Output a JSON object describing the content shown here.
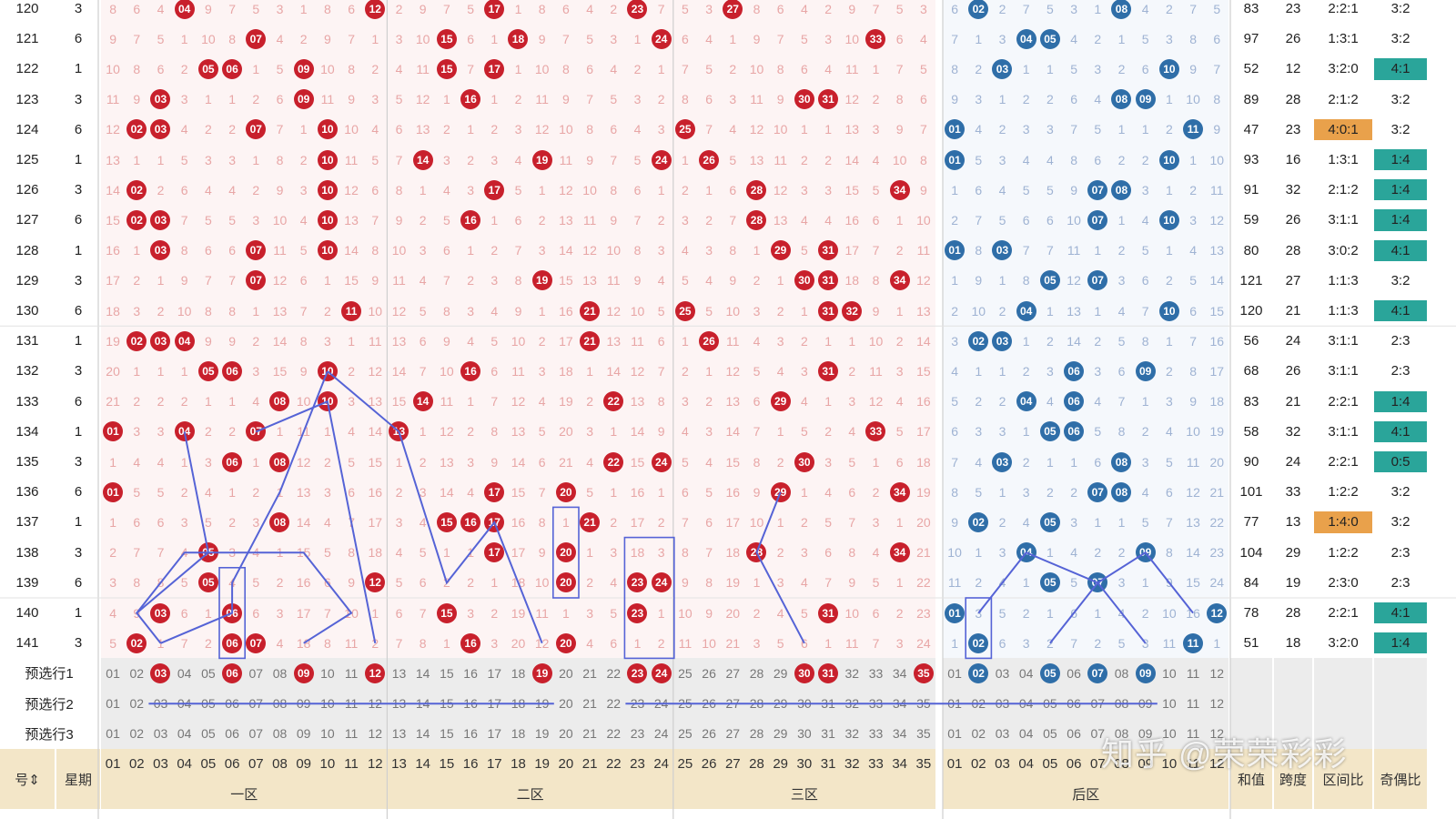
{
  "chart_data": {
    "type": "table",
    "columns": {
      "issue_header": "号",
      "weekday_header": "星期",
      "front_numbers": [
        "01",
        "02",
        "03",
        "04",
        "05",
        "06",
        "07",
        "08",
        "09",
        "10",
        "11",
        "12",
        "13",
        "14",
        "15",
        "16",
        "17",
        "18",
        "19",
        "20",
        "21",
        "22",
        "23",
        "24",
        "25",
        "26",
        "27",
        "28",
        "29",
        "30",
        "31",
        "32",
        "33",
        "34",
        "35"
      ],
      "back_numbers": [
        "01",
        "02",
        "03",
        "04",
        "05",
        "06",
        "07",
        "08",
        "09",
        "10",
        "11",
        "12"
      ],
      "zones": [
        "一区",
        "二区",
        "三区",
        "后区"
      ],
      "stats": [
        "和值",
        "跨度",
        "区间比",
        "奇偶比"
      ]
    },
    "rows": [
      {
        "issue": "120",
        "weekday": "3",
        "front": [
          4,
          12,
          17,
          23,
          27
        ],
        "back": [
          2,
          8
        ],
        "sum": "83",
        "span": "23",
        "zone_ratio": "2:2:1",
        "odd_even": "3:2"
      },
      {
        "issue": "121",
        "weekday": "6",
        "front": [
          7,
          15,
          18,
          24,
          33
        ],
        "back": [
          4,
          5
        ],
        "sum": "97",
        "span": "26",
        "zone_ratio": "1:3:1",
        "odd_even": "3:2"
      },
      {
        "issue": "122",
        "weekday": "1",
        "front": [
          5,
          6,
          9,
          15,
          17
        ],
        "back": [
          3,
          10
        ],
        "sum": "52",
        "span": "12",
        "zone_ratio": "3:2:0",
        "odd_even": "4:1"
      },
      {
        "issue": "123",
        "weekday": "3",
        "front": [
          3,
          9,
          16,
          30,
          31
        ],
        "back": [
          8,
          9
        ],
        "sum": "89",
        "span": "28",
        "zone_ratio": "2:1:2",
        "odd_even": "3:2"
      },
      {
        "issue": "124",
        "weekday": "6",
        "front": [
          2,
          3,
          7,
          10,
          25
        ],
        "back": [
          1,
          11
        ],
        "sum": "47",
        "span": "23",
        "zone_ratio": "4:0:1",
        "odd_even": "3:2"
      },
      {
        "issue": "125",
        "weekday": "1",
        "front": [
          10,
          14,
          19,
          24,
          26
        ],
        "back": [
          1,
          10
        ],
        "sum": "93",
        "span": "16",
        "zone_ratio": "1:3:1",
        "odd_even": "1:4"
      },
      {
        "issue": "126",
        "weekday": "3",
        "front": [
          2,
          10,
          17,
          28,
          34
        ],
        "back": [
          7,
          8
        ],
        "sum": "91",
        "span": "32",
        "zone_ratio": "2:1:2",
        "odd_even": "1:4"
      },
      {
        "issue": "127",
        "weekday": "6",
        "front": [
          2,
          3,
          10,
          16,
          28
        ],
        "back": [
          7,
          10
        ],
        "sum": "59",
        "span": "26",
        "zone_ratio": "3:1:1",
        "odd_even": "1:4"
      },
      {
        "issue": "128",
        "weekday": "1",
        "front": [
          3,
          7,
          10,
          29,
          31
        ],
        "back": [
          1,
          3
        ],
        "sum": "80",
        "span": "28",
        "zone_ratio": "3:0:2",
        "odd_even": "4:1"
      },
      {
        "issue": "129",
        "weekday": "3",
        "front": [
          7,
          19,
          30,
          31,
          34
        ],
        "back": [
          5,
          7
        ],
        "sum": "121",
        "span": "27",
        "zone_ratio": "1:1:3",
        "odd_even": "3:2"
      },
      {
        "issue": "130",
        "weekday": "6",
        "front": [
          11,
          21,
          25,
          31,
          32
        ],
        "back": [
          4,
          10
        ],
        "sum": "120",
        "span": "21",
        "zone_ratio": "1:1:3",
        "odd_even": "4:1"
      },
      {
        "issue": "131",
        "weekday": "1",
        "front": [
          2,
          3,
          4,
          21,
          26
        ],
        "back": [
          2,
          3
        ],
        "sum": "56",
        "span": "24",
        "zone_ratio": "3:1:1",
        "odd_even": "2:3"
      },
      {
        "issue": "132",
        "weekday": "3",
        "front": [
          5,
          6,
          10,
          16,
          31
        ],
        "back": [
          6,
          9
        ],
        "sum": "68",
        "span": "26",
        "zone_ratio": "3:1:1",
        "odd_even": "2:3"
      },
      {
        "issue": "133",
        "weekday": "6",
        "front": [
          8,
          10,
          14,
          22,
          29
        ],
        "back": [
          4,
          6
        ],
        "sum": "83",
        "span": "21",
        "zone_ratio": "2:2:1",
        "odd_even": "1:4"
      },
      {
        "issue": "134",
        "weekday": "1",
        "front": [
          1,
          4,
          7,
          13,
          33
        ],
        "back": [
          5,
          6
        ],
        "sum": "58",
        "span": "32",
        "zone_ratio": "3:1:1",
        "odd_even": "4:1"
      },
      {
        "issue": "135",
        "weekday": "3",
        "front": [
          6,
          8,
          22,
          24,
          30
        ],
        "back": [
          3,
          8
        ],
        "sum": "90",
        "span": "24",
        "zone_ratio": "2:2:1",
        "odd_even": "0:5"
      },
      {
        "issue": "136",
        "weekday": "6",
        "front": [
          1,
          17,
          20,
          29,
          34
        ],
        "back": [
          7,
          8
        ],
        "sum": "101",
        "span": "33",
        "zone_ratio": "1:2:2",
        "odd_even": "3:2"
      },
      {
        "issue": "137",
        "weekday": "1",
        "front": [
          8,
          15,
          16,
          17,
          21
        ],
        "back": [
          2,
          5
        ],
        "sum": "77",
        "span": "13",
        "zone_ratio": "1:4:0",
        "odd_even": "3:2"
      },
      {
        "issue": "138",
        "weekday": "3",
        "front": [
          5,
          17,
          20,
          28,
          34
        ],
        "back": [
          4,
          9
        ],
        "sum": "104",
        "span": "29",
        "zone_ratio": "1:2:2",
        "odd_even": "2:3"
      },
      {
        "issue": "139",
        "weekday": "6",
        "front": [
          5,
          12,
          20,
          23,
          24
        ],
        "back": [
          5,
          7
        ],
        "sum": "84",
        "span": "19",
        "zone_ratio": "2:3:0",
        "odd_even": "2:3"
      },
      {
        "issue": "140",
        "weekday": "1",
        "front": [
          3,
          6,
          15,
          23,
          31
        ],
        "back": [
          1,
          12
        ],
        "sum": "78",
        "span": "28",
        "zone_ratio": "2:2:1",
        "odd_even": "4:1"
      },
      {
        "issue": "141",
        "weekday": "3",
        "front": [
          2,
          6,
          7,
          16,
          20
        ],
        "back": [
          2,
          11
        ],
        "sum": "51",
        "span": "18",
        "zone_ratio": "3:2:0",
        "odd_even": "1:4"
      }
    ],
    "option_rows": [
      {
        "label": "预选行1",
        "front_selected": [
          3,
          6,
          9,
          12,
          19,
          23,
          24,
          30,
          31,
          35
        ],
        "back_selected": [
          2,
          5,
          7,
          9
        ]
      },
      {
        "label": "预选行2",
        "front_selected": [],
        "back_selected": []
      },
      {
        "label": "预选行3",
        "front_selected": [],
        "back_selected": []
      }
    ],
    "watermark": "知乎 @荣荣彩彩",
    "colors": {
      "front_ball": "#c8202c",
      "back_ball": "#2f6ea8",
      "header_bg": "#f3e6c8",
      "highlight_green": "#2aa59a",
      "highlight_orange": "#e9a14b",
      "line": "#5563d6"
    }
  }
}
